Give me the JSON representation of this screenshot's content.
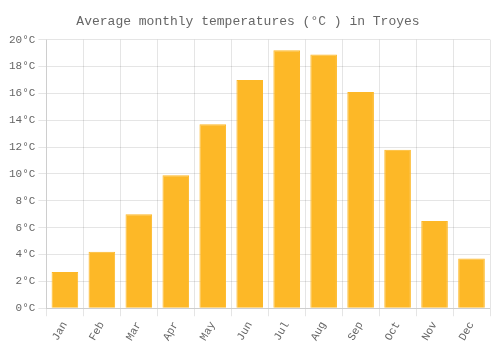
{
  "chart_data": {
    "type": "bar",
    "title": "Average monthly temperatures (°C ) in Troyes",
    "categories": [
      "Jan",
      "Feb",
      "Mar",
      "Apr",
      "May",
      "Jun",
      "Jul",
      "Aug",
      "Sep",
      "Oct",
      "Nov",
      "Dec"
    ],
    "values": [
      2.7,
      4.2,
      7.0,
      9.9,
      13.7,
      17.0,
      19.2,
      18.9,
      16.1,
      11.8,
      6.5,
      3.7
    ],
    "color": "#FDB827",
    "ylim": [
      0,
      20
    ],
    "yticks": [
      {
        "value": 0,
        "label": "0°C"
      },
      {
        "value": 2,
        "label": "2°C"
      },
      {
        "value": 4,
        "label": "4°C"
      },
      {
        "value": 6,
        "label": "6°C"
      },
      {
        "value": 8,
        "label": "8°C"
      },
      {
        "value": 10,
        "label": "10°C"
      },
      {
        "value": 12,
        "label": "12°C"
      },
      {
        "value": 14,
        "label": "14°C"
      },
      {
        "value": 16,
        "label": "16°C"
      },
      {
        "value": 18,
        "label": "18°C"
      },
      {
        "value": 20,
        "label": "20°C"
      }
    ],
    "grid": true
  }
}
